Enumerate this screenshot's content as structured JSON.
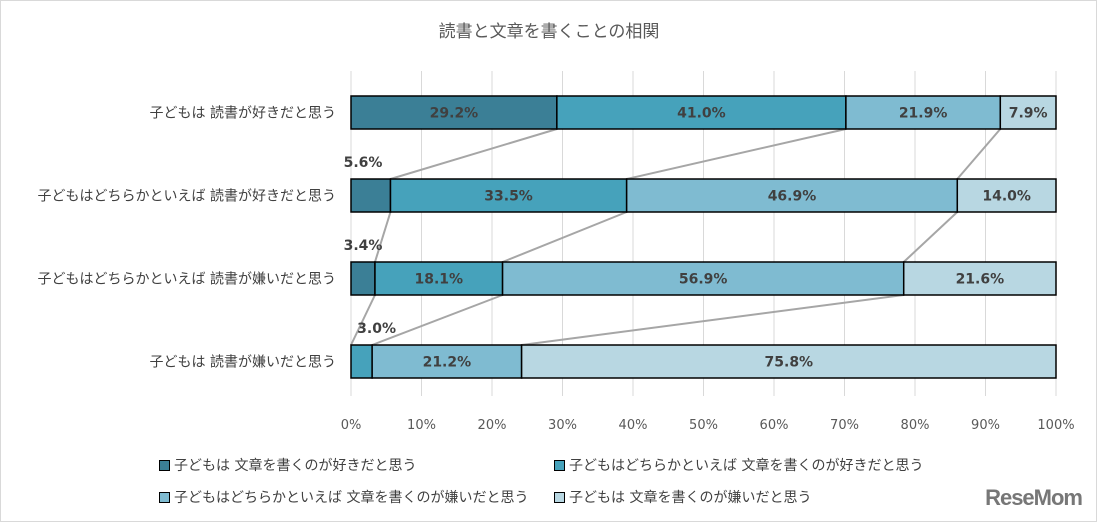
{
  "chart_data": {
    "type": "bar",
    "stacked": true,
    "orientation": "horizontal",
    "title": "読書と文章を書くことの相関",
    "categories": [
      "子どもは 読書が好きだと思う",
      "子どもはどちらかといえば 読書が好きだと思う",
      "子どもはどちらかといえば 読書が嫌いだと思う",
      "子どもは 読書が嫌いだと思う"
    ],
    "series": [
      {
        "name": "子どもは 文章を書くのが好きだと思う",
        "color": "#3b7f96",
        "values": [
          29.2,
          5.6,
          3.4,
          0
        ]
      },
      {
        "name": "子どもはどちらかといえば 文章を書くのが好きだと思う",
        "color": "#46a2bb",
        "values": [
          41.0,
          33.5,
          18.1,
          3.0
        ]
      },
      {
        "name": "子どもはどちらかといえば 文章を書くのが嫌いだと思う",
        "color": "#7fbbd1",
        "values": [
          21.9,
          46.9,
          56.9,
          21.2
        ]
      },
      {
        "name": "子どもは 文章を書くのが嫌いだと思う",
        "color": "#b8d7e2",
        "values": [
          7.9,
          14.0,
          21.6,
          75.8
        ]
      }
    ],
    "data_labels": [
      [
        "29.2%",
        "41.0%",
        "21.9%",
        "7.9%"
      ],
      [
        "5.6%",
        "33.5%",
        "46.9%",
        "14.0%"
      ],
      [
        "3.4%",
        "18.1%",
        "56.9%",
        "21.6%"
      ],
      [
        "",
        "3.0%",
        "21.2%",
        "75.8%"
      ]
    ],
    "xlim": [
      0,
      100
    ],
    "xticks": [
      "0%",
      "10%",
      "20%",
      "30%",
      "40%",
      "50%",
      "60%",
      "70%",
      "80%",
      "90%",
      "100%"
    ],
    "grid": true,
    "series_lines": true,
    "legend_position": "bottom"
  },
  "watermark": "ReseMom"
}
